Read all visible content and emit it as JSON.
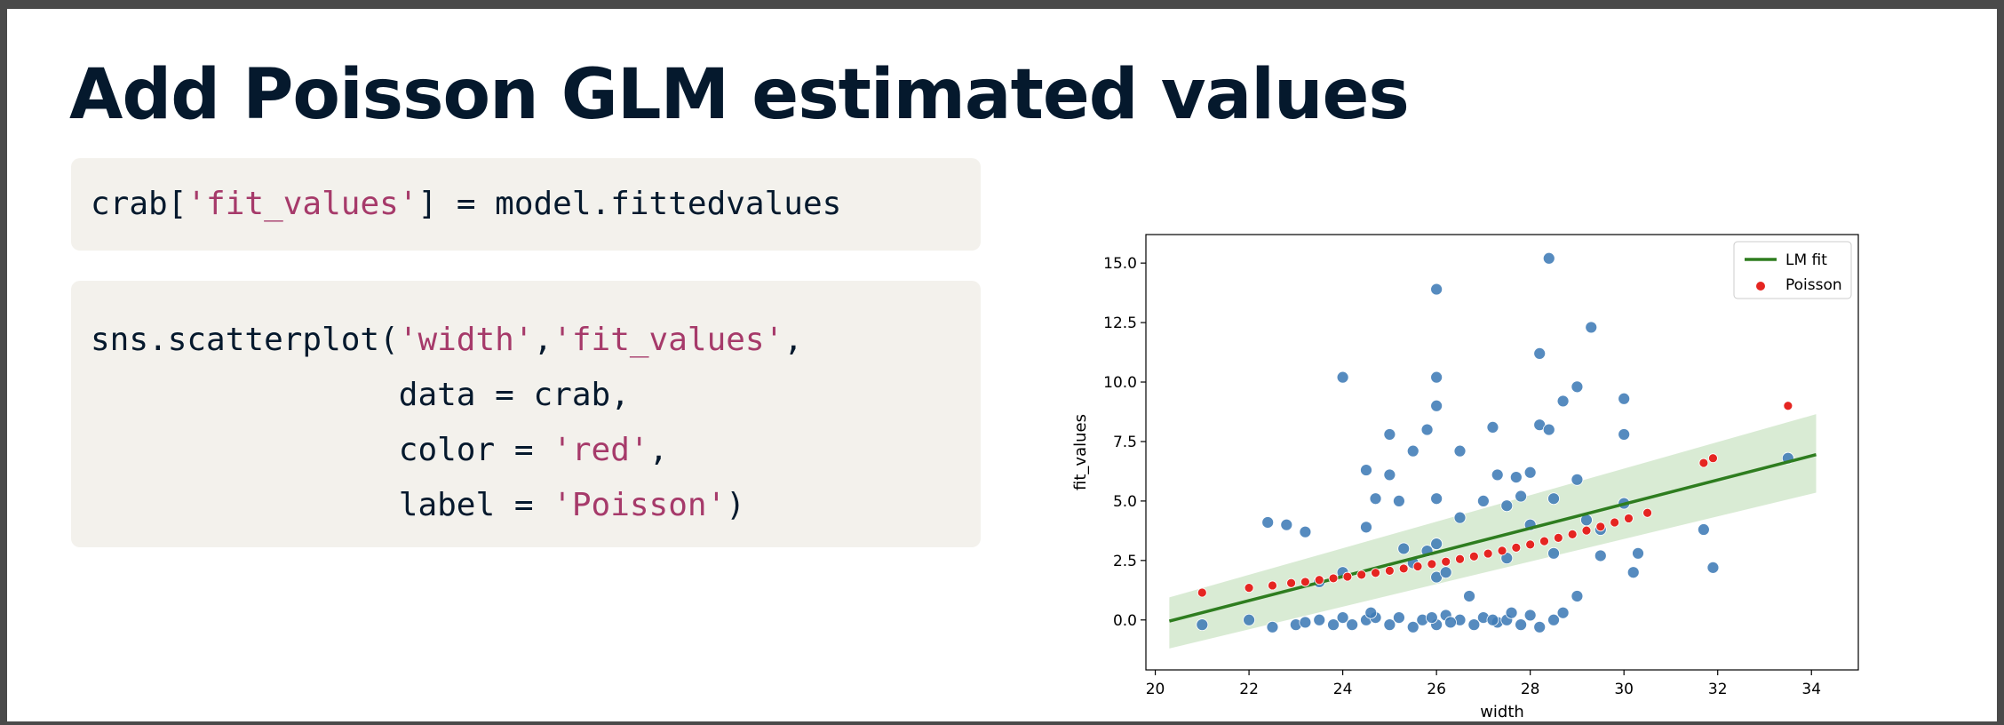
{
  "slide": {
    "title": "Add Poisson GLM estimated values"
  },
  "code": {
    "block1": {
      "l1_pre": "crab[",
      "l1_str": "'fit_values'",
      "l1_post": "] = model.fittedvalues"
    },
    "block2": {
      "l1_pre": "sns.scatterplot(",
      "l1_s1": "'width'",
      "l1_mid": ",",
      "l1_s2": "'fit_values'",
      "l1_post": ",",
      "l2": "                data = crab,",
      "l3_pre": "                color = ",
      "l3_str": "'red'",
      "l3_post": ",",
      "l4_pre": "                label = ",
      "l4_str": "'Poisson'",
      "l4_post": ")"
    }
  },
  "colors": {
    "title": "#05192d",
    "code_bg": "#f3f1ec",
    "string": "#a63a6a",
    "observed": "#3f7bb6",
    "poisson": "#e52521",
    "lm_line": "#2e7d1f",
    "ci_band": "#cfe6c9"
  },
  "chart_data": {
    "type": "scatter",
    "title": "",
    "xlabel": "width",
    "ylabel": "fit_values",
    "xlim": [
      19.8,
      35
    ],
    "ylim": [
      -2.1,
      16.2
    ],
    "xticks": [
      "20",
      "22",
      "24",
      "26",
      "28",
      "30",
      "32",
      "34"
    ],
    "yticks": [
      "0.0",
      "2.5",
      "5.0",
      "7.5",
      "10.0",
      "12.5",
      "15.0"
    ],
    "grid": false,
    "legend": {
      "position": "top-right",
      "entries": [
        {
          "label": "LM fit",
          "marker": "line"
        },
        {
          "label": "Poisson",
          "marker": "dot"
        }
      ]
    },
    "lm_fit": {
      "x": [
        20.3,
        34.1
      ],
      "y": [
        -0.05,
        6.95
      ],
      "ci_upper": [
        0.95,
        8.65
      ],
      "ci_lower": [
        -1.2,
        5.35
      ]
    },
    "observed": [
      [
        21.0,
        -0.2
      ],
      [
        22.5,
        -0.3
      ],
      [
        23.0,
        -0.2
      ],
      [
        23.2,
        -0.1
      ],
      [
        23.5,
        0.0
      ],
      [
        23.8,
        -0.2
      ],
      [
        24.0,
        0.1
      ],
      [
        24.2,
        -0.2
      ],
      [
        24.5,
        0.0
      ],
      [
        24.7,
        0.1
      ],
      [
        25.0,
        -0.2
      ],
      [
        25.2,
        0.1
      ],
      [
        25.5,
        -0.3
      ],
      [
        25.7,
        0.0
      ],
      [
        26.0,
        -0.2
      ],
      [
        26.2,
        0.2
      ],
      [
        26.5,
        0.0
      ],
      [
        26.8,
        -0.2
      ],
      [
        27.0,
        0.1
      ],
      [
        27.3,
        -0.1
      ],
      [
        27.5,
        0.0
      ],
      [
        27.8,
        -0.2
      ],
      [
        28.0,
        0.2
      ],
      [
        28.2,
        -0.3
      ],
      [
        28.5,
        0.0
      ],
      [
        28.7,
        0.3
      ],
      [
        29.0,
        1.0
      ],
      [
        22.0,
        0.0
      ],
      [
        22.8,
        4.0
      ],
      [
        22.4,
        4.1
      ],
      [
        23.2,
        3.7
      ],
      [
        23.5,
        1.6
      ],
      [
        24.0,
        10.2
      ],
      [
        24.0,
        2.0
      ],
      [
        24.5,
        6.3
      ],
      [
        24.5,
        3.9
      ],
      [
        24.7,
        5.1
      ],
      [
        25.0,
        7.8
      ],
      [
        25.0,
        6.1
      ],
      [
        25.2,
        5.0
      ],
      [
        25.3,
        3.0
      ],
      [
        25.5,
        7.1
      ],
      [
        25.5,
        2.4
      ],
      [
        25.8,
        8.0
      ],
      [
        25.8,
        2.9
      ],
      [
        26.0,
        13.9
      ],
      [
        26.0,
        10.2
      ],
      [
        26.0,
        9.0
      ],
      [
        26.0,
        5.1
      ],
      [
        26.0,
        3.2
      ],
      [
        26.0,
        1.8
      ],
      [
        26.2,
        2.0
      ],
      [
        26.5,
        7.1
      ],
      [
        26.5,
        4.3
      ],
      [
        26.7,
        1.0
      ],
      [
        27.0,
        5.0
      ],
      [
        27.2,
        8.1
      ],
      [
        27.3,
        6.1
      ],
      [
        27.5,
        4.8
      ],
      [
        27.5,
        2.6
      ],
      [
        27.7,
        6.0
      ],
      [
        27.8,
        5.2
      ],
      [
        28.0,
        6.2
      ],
      [
        28.0,
        4.0
      ],
      [
        28.2,
        11.2
      ],
      [
        28.2,
        8.2
      ],
      [
        28.4,
        15.2
      ],
      [
        28.4,
        8.0
      ],
      [
        28.5,
        5.1
      ],
      [
        28.5,
        2.8
      ],
      [
        28.7,
        9.2
      ],
      [
        29.0,
        9.8
      ],
      [
        29.0,
        5.9
      ],
      [
        29.2,
        4.2
      ],
      [
        29.3,
        12.3
      ],
      [
        29.5,
        3.8
      ],
      [
        29.5,
        2.7
      ],
      [
        30.0,
        9.3
      ],
      [
        30.0,
        7.8
      ],
      [
        30.0,
        4.9
      ],
      [
        30.2,
        2.0
      ],
      [
        30.3,
        2.8
      ],
      [
        31.7,
        3.8
      ],
      [
        31.9,
        2.2
      ],
      [
        33.5,
        6.8
      ],
      [
        24.6,
        0.3
      ],
      [
        25.9,
        0.1
      ],
      [
        26.3,
        -0.1
      ],
      [
        27.2,
        0.0
      ],
      [
        27.6,
        0.3
      ]
    ],
    "poisson": [
      [
        21.0,
        1.15
      ],
      [
        22.0,
        1.35
      ],
      [
        22.5,
        1.45
      ],
      [
        22.9,
        1.55
      ],
      [
        23.2,
        1.6
      ],
      [
        23.5,
        1.68
      ],
      [
        23.8,
        1.75
      ],
      [
        24.1,
        1.82
      ],
      [
        24.4,
        1.9
      ],
      [
        24.7,
        1.98
      ],
      [
        25.0,
        2.07
      ],
      [
        25.3,
        2.16
      ],
      [
        25.6,
        2.25
      ],
      [
        25.9,
        2.35
      ],
      [
        26.2,
        2.45
      ],
      [
        26.5,
        2.56
      ],
      [
        26.8,
        2.67
      ],
      [
        27.1,
        2.79
      ],
      [
        27.4,
        2.91
      ],
      [
        27.7,
        3.04
      ],
      [
        28.0,
        3.17
      ],
      [
        28.3,
        3.31
      ],
      [
        28.6,
        3.45
      ],
      [
        28.9,
        3.6
      ],
      [
        29.2,
        3.76
      ],
      [
        29.5,
        3.92
      ],
      [
        29.8,
        4.1
      ],
      [
        30.1,
        4.27
      ],
      [
        30.5,
        4.5
      ],
      [
        31.7,
        6.6
      ],
      [
        31.9,
        6.8
      ],
      [
        33.5,
        9.0
      ]
    ]
  }
}
